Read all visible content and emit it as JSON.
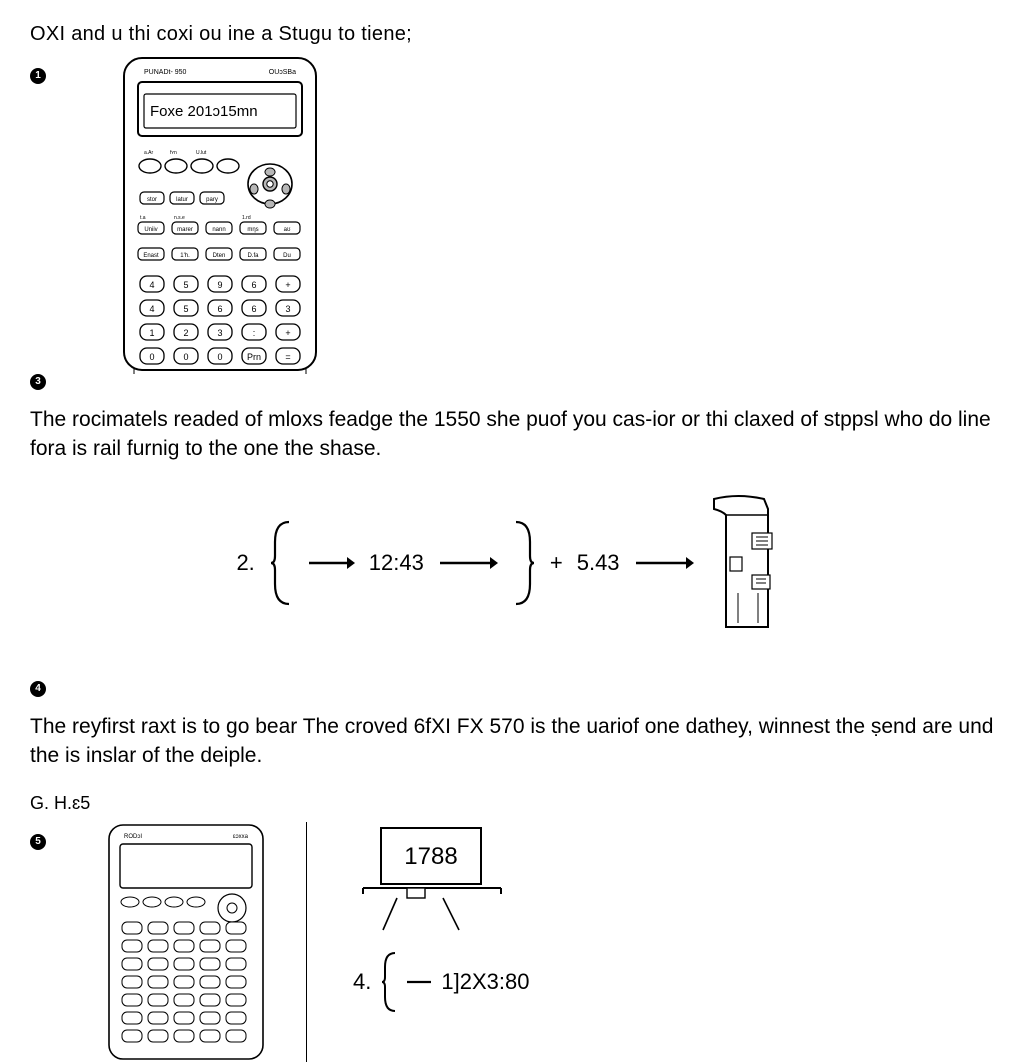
{
  "top_line": "OXI and u thi coxi ou ine a Stugu to tiene;",
  "bullets": {
    "b1": "1",
    "b3": "3",
    "b4": "4",
    "b5": "5"
  },
  "calc1": {
    "brand_left": "PUNADt- 950",
    "brand_right": "OUᴐSBa",
    "display": "Foxe  201ᴐ15mn",
    "row_labels_top": [
      "a.Ar",
      "fʏn",
      "U.lut"
    ],
    "func_row1": [
      "stor",
      "latur",
      "pary"
    ],
    "row_labels_2": [
      "t.a",
      "n.s.e",
      "",
      "1.rd",
      ""
    ],
    "func_row2": [
      "Uniiv",
      "marer",
      "nann",
      "mηs",
      "aʊ"
    ],
    "row_labels_3": [
      "",
      "",
      "",
      "",
      ""
    ],
    "func_row3": [
      "Enast",
      "1'h.",
      "Dten",
      "D.fa",
      "Du"
    ],
    "num_row1": [
      "4",
      "5",
      "9",
      "6",
      "+"
    ],
    "num_row2": [
      "4",
      "5",
      "6",
      "6",
      "3"
    ],
    "num_row3": [
      "1",
      "2",
      "3",
      ":",
      "+"
    ],
    "num_row4": [
      "0",
      "0",
      "0",
      "Prn",
      "="
    ],
    "colors": {
      "outline": "#000000",
      "fill": "#ffffff",
      "dpad": "#b7b7b7",
      "text": "#000000"
    },
    "outline_width": 2
  },
  "para3": "The rocimatels readed of mloxs feadge the 1550 she puof you cas-ior or thi claxed of stppsl who do line fora is rail furnig to the one the shase.",
  "equation": {
    "lead": "2.",
    "val1": "12:43",
    "plus": "+",
    "val2": "5.43",
    "arrow_color": "#000000",
    "bracket_color": "#000000"
  },
  "para4": "The reyfirst raxt is to go bear The croved 6fXI FX 570 is the uariof one dathey, winnest the ṣend are und the is inslar of the deiple.",
  "subhead": "G. H.ɛ5",
  "calc2": {
    "brand_left": "RODᴐI",
    "brand_right": "ɛᴐxxa"
  },
  "card": {
    "value": "1788"
  },
  "eq2": {
    "lead": "4.",
    "val": "1]2X3:80"
  },
  "page": {
    "background_color": "#ffffff",
    "text_color": "#000000",
    "font_family": "Arial",
    "para_fontsize": 21,
    "eq_fontsize": 22
  }
}
